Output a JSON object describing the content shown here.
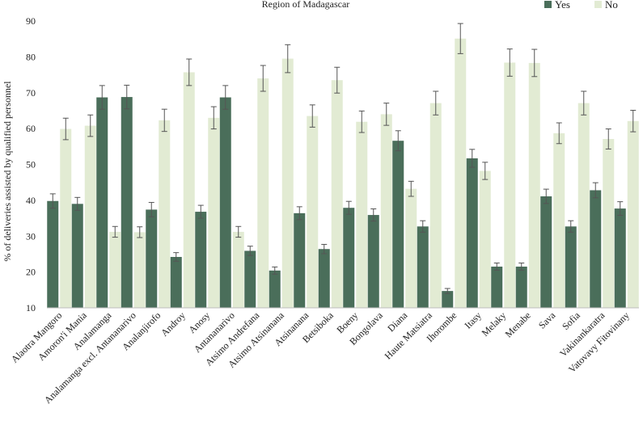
{
  "chart_data": {
    "type": "bar",
    "title": "Region of Madagascar",
    "xlabel": "",
    "ylabel": "% of deliveries assisted by qualified personnel",
    "ylim": [
      10,
      90
    ],
    "yticks": [
      10,
      20,
      30,
      40,
      50,
      60,
      70,
      80,
      90
    ],
    "grid": false,
    "legend_position": "top-right",
    "colors": {
      "yes": "#4a6e5a",
      "no": "#e2ebd3",
      "error": "#555555",
      "axis": "#bdbdbd"
    },
    "categories": [
      "Alaotra Mangoro",
      "Amoron'i Mania",
      "Analamanga",
      "Analamanga excl. Antananarivo",
      "Analanjirofo",
      "Androy",
      "Anosy",
      "Antananarivo",
      "Atsimo Andrefana",
      "Atsimo Atsinanana",
      "Atsinanana",
      "Betsiboka",
      "Boeny",
      "Bongolava",
      "Diana",
      "Haute Matsiatra",
      "Ihorombe",
      "Itasy",
      "Melaky",
      "Menabe",
      "Sava",
      "Sofia",
      "Vakinankaratra",
      "Vatovavy Fitovinany"
    ],
    "series": [
      {
        "name": "Yes",
        "values": [
          39.8,
          39,
          68.7,
          68.8,
          37.4,
          24.2,
          36.8,
          68.7,
          25.9,
          20.4,
          36.4,
          26.4,
          37.9,
          35.9,
          56.6,
          32.7,
          14.7,
          51.7,
          21.5,
          21.5,
          41.1,
          32.7,
          42.8,
          37.7
        ],
        "errors": [
          2,
          1.8,
          3.3,
          3.3,
          2,
          1.2,
          1.8,
          3.3,
          1.3,
          1,
          1.8,
          1.3,
          1.8,
          1.7,
          2.8,
          1.6,
          0.7,
          2.5,
          1,
          1,
          2,
          1.6,
          2.1,
          1.9
        ]
      },
      {
        "name": "No",
        "values": [
          59.9,
          60.8,
          31.2,
          31.1,
          62.3,
          75.7,
          63,
          31.2,
          74,
          79.5,
          63.5,
          73.5,
          61.9,
          64,
          43.2,
          67.1,
          85.1,
          48.2,
          78.4,
          78.3,
          58.7,
          67.1,
          57.1,
          62.1
        ],
        "errors": [
          3,
          3,
          1.5,
          1.5,
          3.1,
          3.7,
          3.1,
          1.5,
          3.6,
          3.9,
          3.1,
          3.6,
          3,
          3.1,
          2.1,
          3.3,
          4.2,
          2.4,
          3.8,
          3.8,
          2.9,
          3.3,
          2.8,
          3
        ]
      }
    ]
  }
}
